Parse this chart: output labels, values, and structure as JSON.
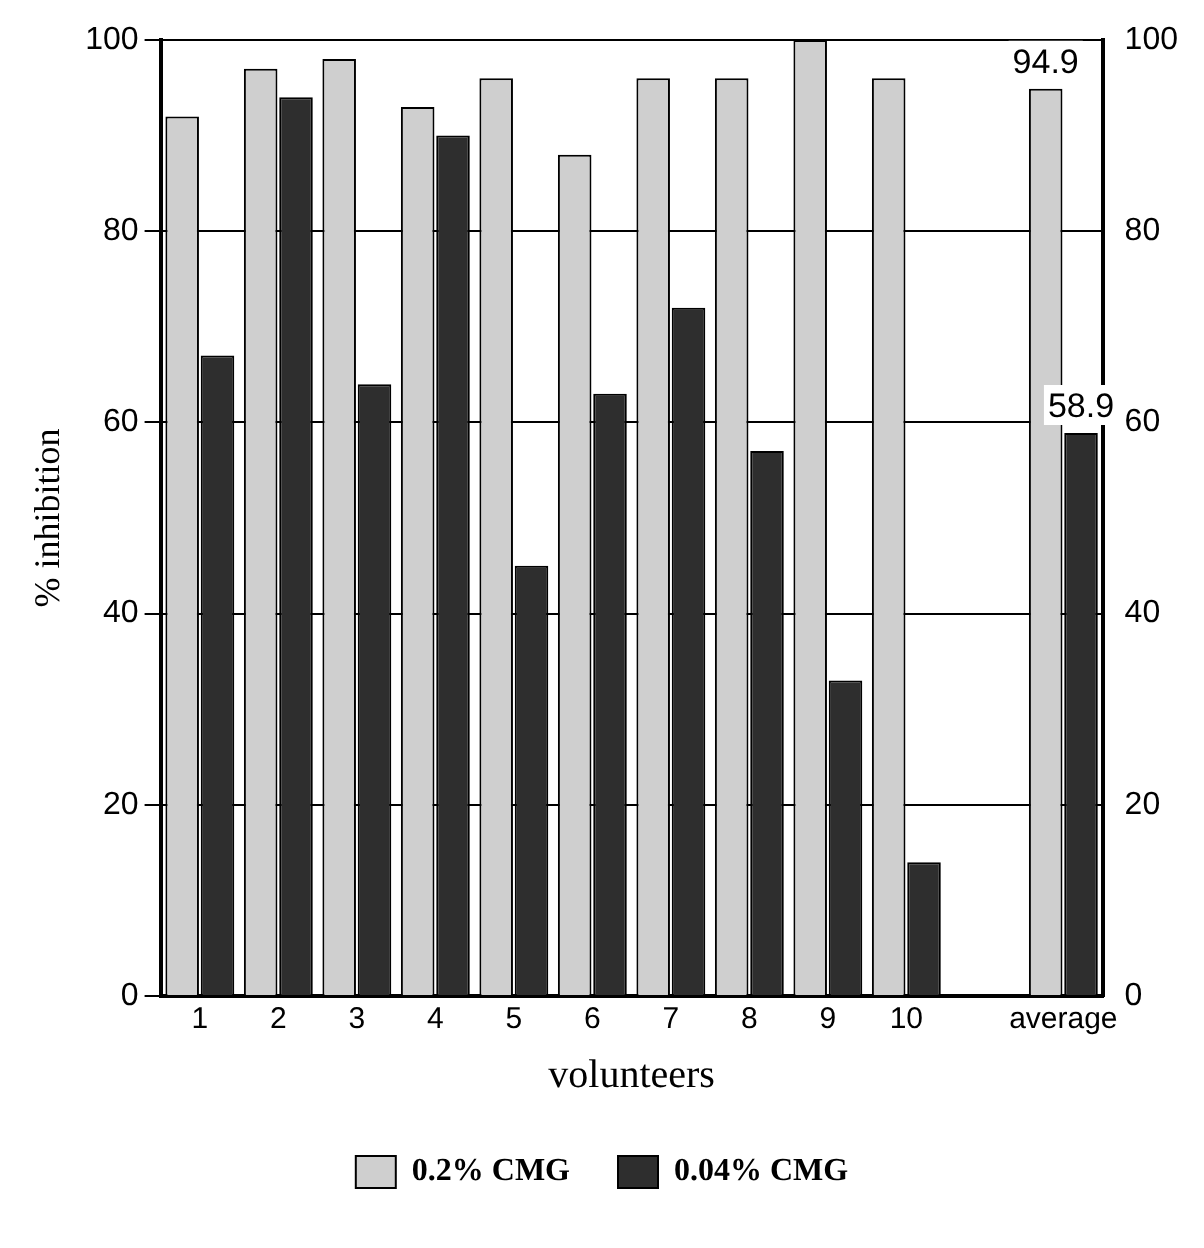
{
  "chart_data": {
    "type": "bar",
    "xlabel": "volunteers",
    "ylabel": "% inhibition",
    "categories": [
      "1",
      "2",
      "3",
      "4",
      "5",
      "6",
      "7",
      "8",
      "9",
      "10",
      null,
      "average"
    ],
    "series": [
      {
        "name": "0.2% CMG",
        "color": "#cfcfcf",
        "values": [
          92,
          97,
          98,
          93,
          96,
          88,
          96,
          96,
          100,
          96,
          null,
          94.9
        ],
        "value_labels": [
          null,
          null,
          null,
          null,
          null,
          null,
          null,
          null,
          null,
          null,
          null,
          "94.9"
        ]
      },
      {
        "name": "0.04% CMG",
        "color": "#2e2e2e",
        "values": [
          67,
          94,
          64,
          90,
          45,
          63,
          72,
          57,
          33,
          14,
          null,
          58.9
        ],
        "value_labels": [
          null,
          null,
          null,
          null,
          null,
          null,
          null,
          null,
          null,
          null,
          null,
          "58.9"
        ]
      }
    ],
    "ylim": [
      0,
      100
    ],
    "yticks": [
      0,
      20,
      40,
      60,
      80,
      100
    ],
    "y2lim": [
      0,
      100
    ],
    "y2ticks": [
      0,
      20,
      40,
      60,
      80,
      100
    ],
    "grid": "y",
    "legend": "bottom"
  }
}
